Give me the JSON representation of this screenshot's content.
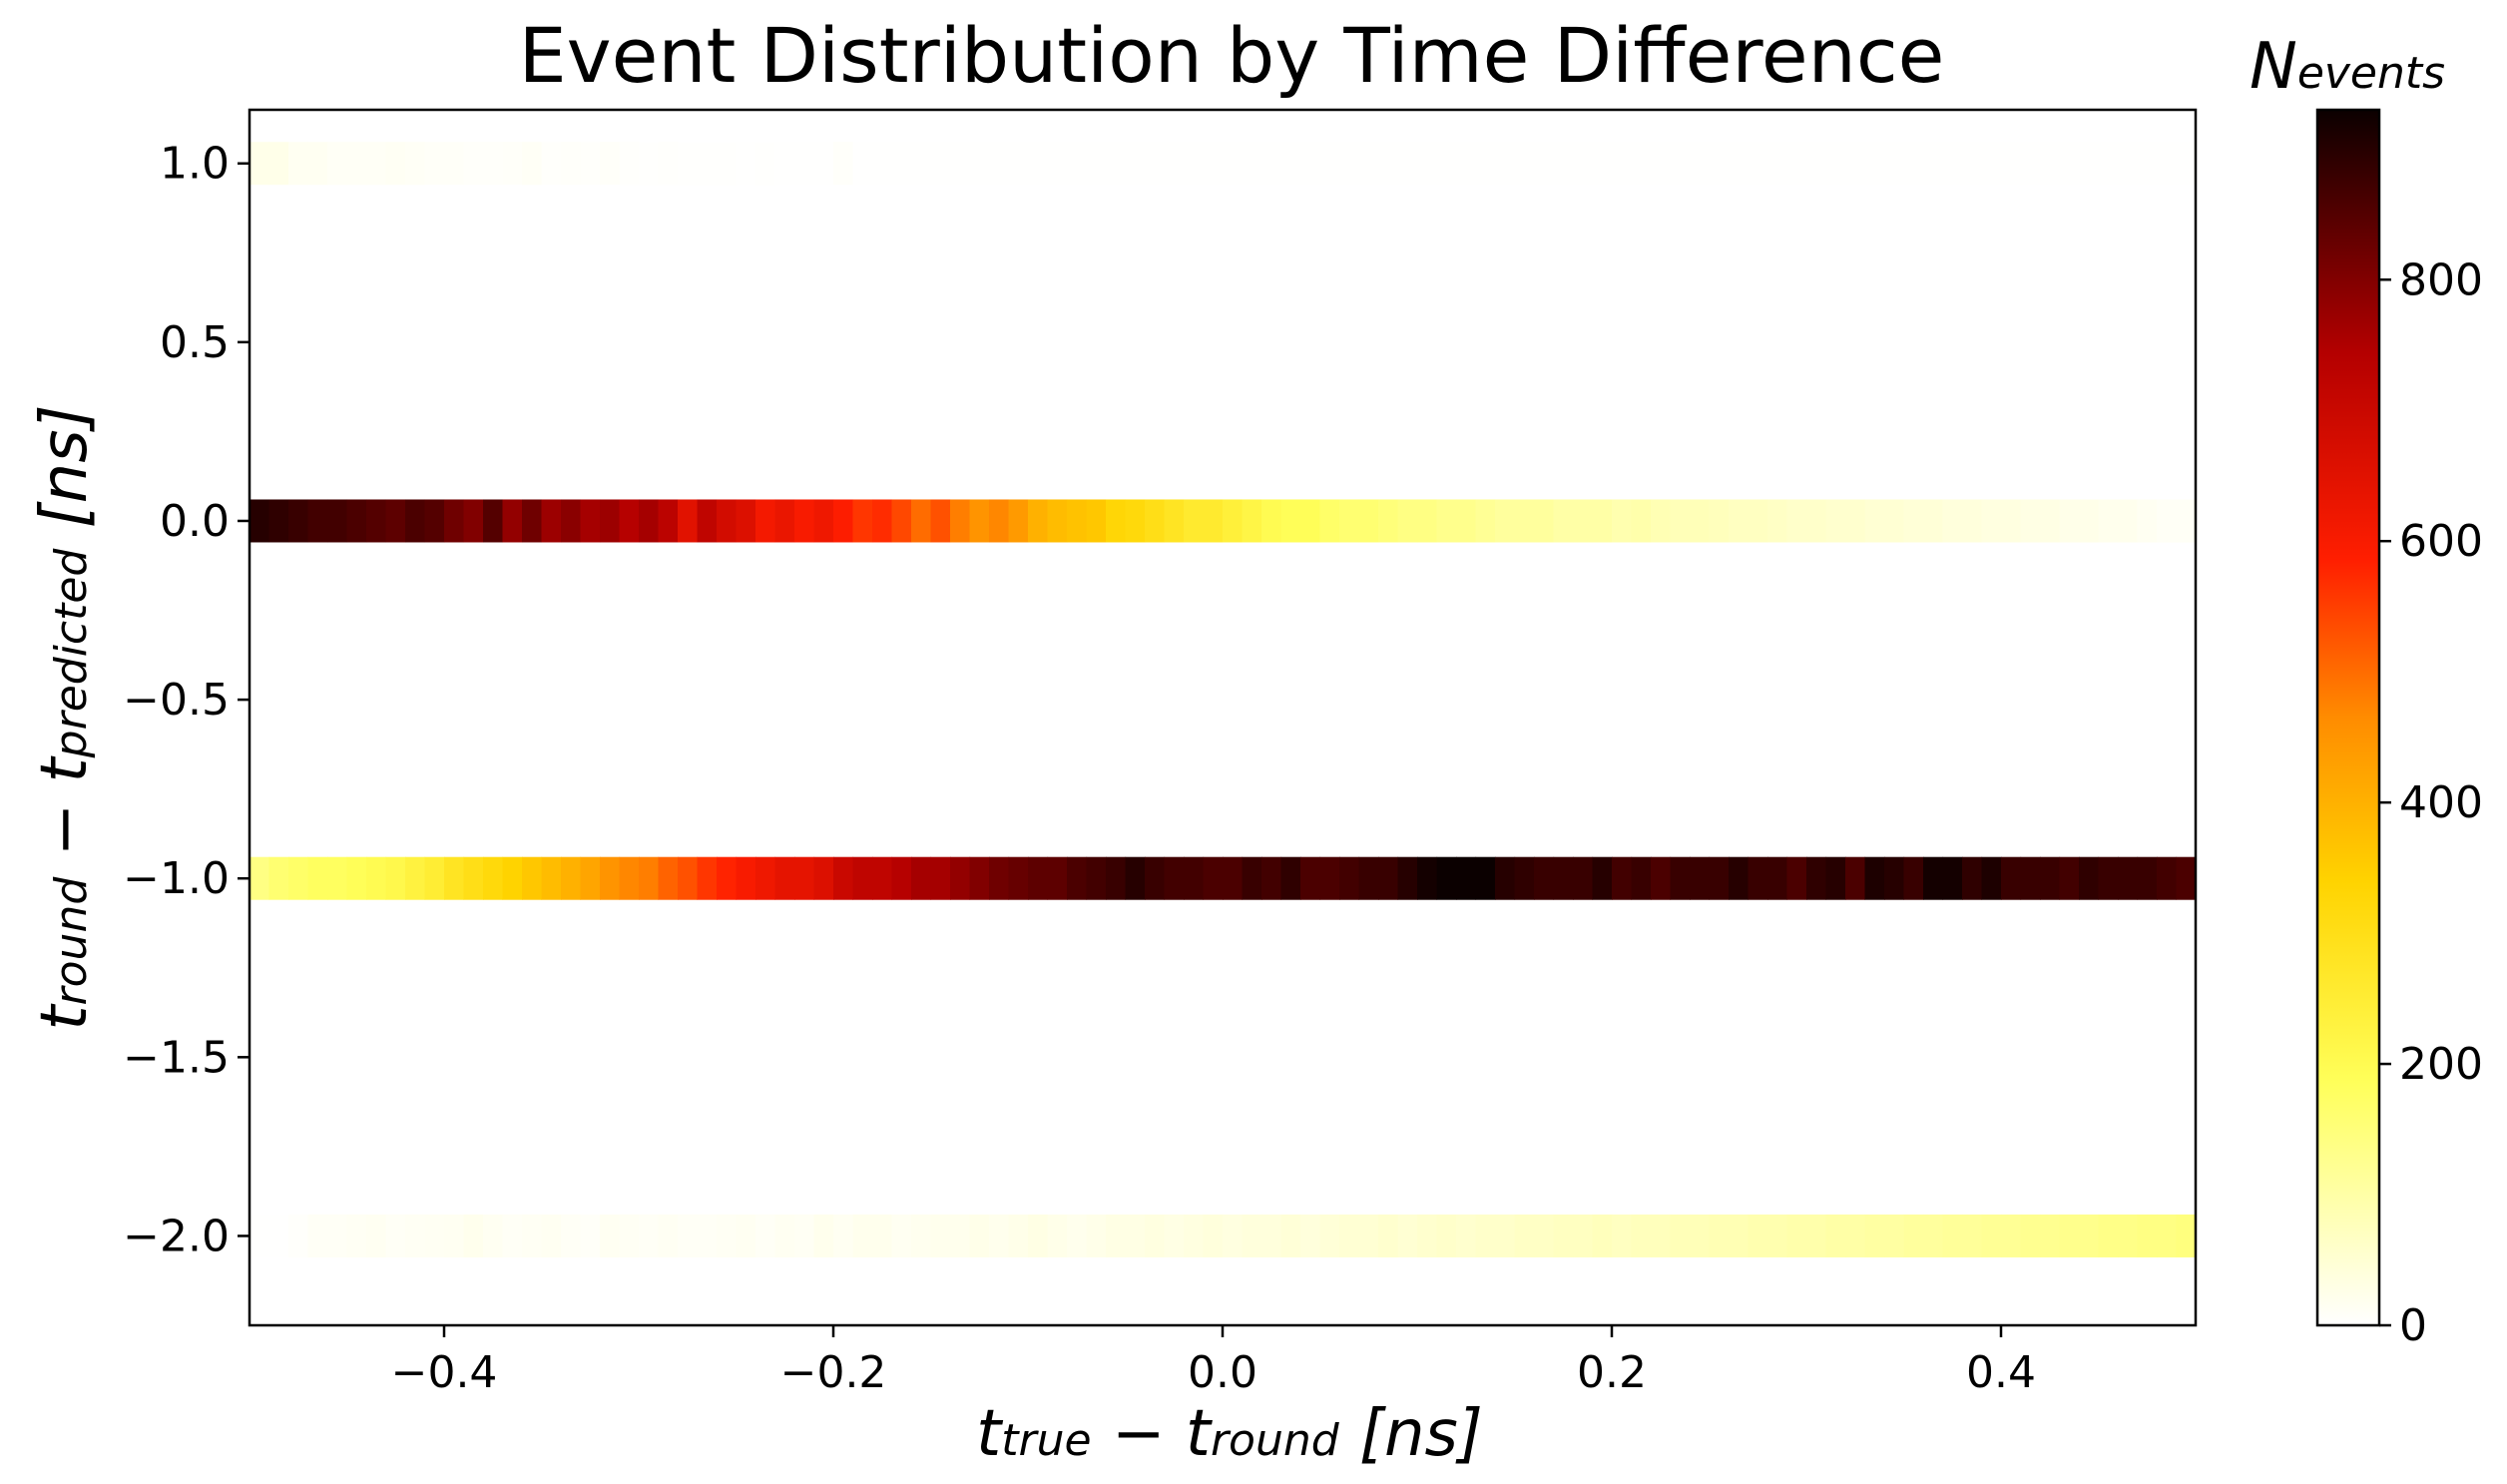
{
  "chart_data": {
    "type": "heatmap",
    "title": "Event Distribution by Time Difference",
    "xlabel": {
      "parts": [
        {
          "t": "t",
          "sub": false
        },
        {
          "t": "true",
          "sub": true
        },
        {
          "t": " − t",
          "sub": false
        },
        {
          "t": "round",
          "sub": true
        },
        {
          "t": " [ns]",
          "sub": false
        }
      ]
    },
    "ylabel": {
      "parts": [
        {
          "t": "t",
          "sub": false
        },
        {
          "t": "round",
          "sub": true
        },
        {
          "t": " − t",
          "sub": false
        },
        {
          "t": "predicted",
          "sub": true
        },
        {
          "t": " [ns]",
          "sub": false
        }
      ]
    },
    "colorbar_label": {
      "main": "N",
      "sub": "events"
    },
    "xlim": [
      -0.5,
      0.5
    ],
    "ylim": [
      -2.25,
      1.15
    ],
    "x_ticks": [
      -0.4,
      -0.2,
      0.0,
      0.2,
      0.4
    ],
    "x_tick_labels": [
      "−0.4",
      "−0.2",
      "0.0",
      "0.2",
      "0.4"
    ],
    "y_ticks": [
      1.0,
      0.5,
      0.0,
      -0.5,
      -1.0,
      -1.5,
      -2.0
    ],
    "y_tick_labels": [
      "1.0",
      "0.5",
      "0.0",
      "−0.5",
      "−1.0",
      "−1.5",
      "−2.0"
    ],
    "colorbar_range": [
      0,
      930
    ],
    "colorbar_ticks": [
      0,
      200,
      400,
      600,
      800
    ],
    "colorbar_tick_labels": [
      "0",
      "200",
      "400",
      "600",
      "800"
    ],
    "colormap": "hot_r",
    "bin_width_x": 0.01,
    "bin_height_y": 0.12,
    "rows": [
      {
        "y": 1.0,
        "values": [
          25,
          25,
          15,
          15,
          10,
          10,
          10,
          12,
          10,
          8,
          8,
          6,
          6,
          7,
          10,
          5,
          6,
          4,
          7,
          3,
          2,
          3,
          2,
          2,
          2,
          1,
          2,
          1,
          1,
          1,
          6,
          1,
          1,
          1,
          1,
          1,
          1,
          1,
          1,
          1,
          1,
          1,
          1,
          1,
          1,
          1,
          1,
          1,
          1,
          1,
          1,
          1,
          1,
          1,
          1,
          1,
          1,
          1,
          1,
          1,
          1,
          1,
          1,
          1,
          1,
          1,
          1,
          1,
          1,
          1,
          1,
          1,
          1,
          1,
          1,
          1,
          1,
          1,
          1,
          1,
          1,
          1,
          1,
          1,
          1,
          1,
          1,
          1,
          1,
          1,
          1,
          1,
          1,
          1,
          1,
          1,
          1,
          1,
          1,
          1
        ]
      },
      {
        "y": 0.0,
        "values": [
          900,
          890,
          880,
          870,
          870,
          860,
          850,
          840,
          860,
          850,
          820,
          800,
          850,
          780,
          820,
          770,
          790,
          760,
          770,
          740,
          760,
          730,
          650,
          720,
          680,
          660,
          610,
          630,
          600,
          620,
          590,
          560,
          570,
          540,
          500,
          530,
          480,
          450,
          470,
          440,
          400,
          380,
          370,
          360,
          330,
          320,
          300,
          280,
          260,
          260,
          240,
          220,
          200,
          190,
          190,
          170,
          160,
          160,
          150,
          140,
          140,
          130,
          130,
          120,
          110,
          110,
          110,
          100,
          100,
          100,
          90,
          95,
          85,
          80,
          80,
          75,
          70,
          70,
          65,
          60,
          60,
          55,
          55,
          50,
          50,
          45,
          45,
          40,
          40,
          35,
          35,
          30,
          30,
          25,
          25,
          20,
          20,
          15,
          10,
          10
        ]
      },
      {
        "y": -1.0,
        "values": [
          140,
          160,
          170,
          180,
          180,
          190,
          200,
          210,
          230,
          250,
          280,
          300,
          320,
          340,
          360,
          380,
          400,
          420,
          450,
          470,
          480,
          510,
          530,
          560,
          580,
          600,
          620,
          640,
          640,
          660,
          700,
          720,
          720,
          740,
          760,
          760,
          780,
          800,
          820,
          830,
          840,
          840,
          860,
          870,
          880,
          900,
          880,
          870,
          870,
          860,
          860,
          880,
          870,
          890,
          860,
          860,
          870,
          880,
          880,
          900,
          920,
          930,
          930,
          930,
          900,
          890,
          880,
          880,
          880,
          900,
          870,
          880,
          860,
          880,
          880,
          880,
          900,
          880,
          880,
          860,
          890,
          900,
          860,
          910,
          900,
          880,
          920,
          920,
          890,
          910,
          880,
          880,
          880,
          870,
          890,
          880,
          880,
          880,
          870,
          860
        ]
      },
      {
        "y": -2.0,
        "values": [
          1,
          1,
          5,
          10,
          10,
          12,
          15,
          10,
          12,
          14,
          15,
          20,
          15,
          10,
          12,
          15,
          10,
          8,
          15,
          12,
          10,
          14,
          10,
          10,
          12,
          15,
          10,
          15,
          12,
          20,
          15,
          20,
          20,
          15,
          18,
          20,
          20,
          25,
          20,
          25,
          30,
          25,
          20,
          25,
          30,
          30,
          35,
          30,
          35,
          40,
          35,
          40,
          40,
          45,
          40,
          45,
          50,
          50,
          55,
          50,
          55,
          60,
          55,
          60,
          60,
          65,
          65,
          70,
          70,
          75,
          70,
          75,
          75,
          80,
          80,
          85,
          85,
          90,
          90,
          95,
          95,
          100,
          100,
          105,
          105,
          110,
          110,
          115,
          115,
          120,
          120,
          125,
          125,
          130,
          130,
          135,
          135,
          140,
          140,
          145
        ]
      }
    ]
  }
}
